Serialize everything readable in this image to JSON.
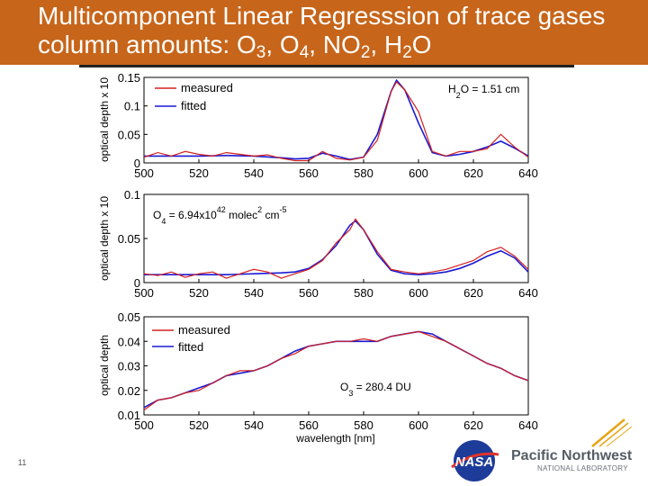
{
  "slide": {
    "title_parts": [
      "Multicomponent Linear Regresssion of trace gases column amounts: O",
      "3",
      ", O",
      "4",
      ", NO",
      "2",
      ", H",
      "2",
      "O"
    ],
    "slide_number": "11",
    "logo_nasa": "NASA",
    "logo_pnnl_name": "Pacific Northwest",
    "logo_pnnl_lab": "NATIONAL LABORATORY",
    "title_bg_color": "#c7651a",
    "measured_color": "#d42020",
    "fitted_color": "#1a1ad4"
  },
  "chart_data": [
    {
      "type": "line",
      "panel": "H2O",
      "ylabel": "optical depth x 10",
      "xlabel": "",
      "xlim": [
        500,
        640
      ],
      "ylim": [
        0,
        0.15
      ],
      "xticks": [
        500,
        520,
        540,
        560,
        580,
        600,
        620,
        640
      ],
      "yticks": [
        "0",
        "0.05",
        "0.1",
        "0.15"
      ],
      "legend": [
        "measured",
        "fitted"
      ],
      "legend_position": "top-left",
      "annotation": {
        "pre": "H",
        "sub": "2",
        "post": "O = 1.51 cm"
      },
      "series": [
        {
          "name": "measured",
          "x": [
            500,
            505,
            510,
            515,
            520,
            525,
            530,
            535,
            540,
            545,
            550,
            555,
            560,
            565,
            570,
            575,
            580,
            585,
            590,
            592,
            595,
            600,
            605,
            610,
            615,
            620,
            625,
            630,
            635,
            640
          ],
          "y": [
            0.01,
            0.018,
            0.012,
            0.02,
            0.015,
            0.012,
            0.018,
            0.015,
            0.012,
            0.014,
            0.008,
            0.004,
            0.004,
            0.02,
            0.008,
            0.005,
            0.01,
            0.04,
            0.125,
            0.142,
            0.128,
            0.09,
            0.02,
            0.012,
            0.02,
            0.02,
            0.025,
            0.05,
            0.028,
            0.01
          ]
        },
        {
          "name": "fitted",
          "x": [
            500,
            510,
            520,
            530,
            540,
            550,
            555,
            560,
            565,
            570,
            575,
            580,
            585,
            590,
            592,
            595,
            600,
            605,
            610,
            615,
            620,
            625,
            630,
            635,
            640
          ],
          "y": [
            0.012,
            0.012,
            0.012,
            0.013,
            0.012,
            0.009,
            0.007,
            0.008,
            0.017,
            0.012,
            0.006,
            0.01,
            0.05,
            0.125,
            0.145,
            0.128,
            0.07,
            0.018,
            0.012,
            0.015,
            0.02,
            0.028,
            0.038,
            0.026,
            0.012
          ]
        }
      ]
    },
    {
      "type": "line",
      "panel": "O4",
      "ylabel": "optical depth x 10",
      "xlabel": "",
      "xlim": [
        500,
        640
      ],
      "ylim": [
        0,
        0.1
      ],
      "xticks": [
        500,
        520,
        540,
        560,
        580,
        600,
        620,
        640
      ],
      "yticks": [
        "0",
        "0.05",
        "0.1"
      ],
      "legend": [],
      "annotation": {
        "pre": "O",
        "sub": "4",
        "post": " = 6.94x10",
        "sup1": "42",
        "post2": " molec",
        "sup2": "2",
        "post3": " cm",
        "sup3": "-5"
      },
      "series": [
        {
          "name": "measured",
          "x": [
            500,
            505,
            510,
            515,
            520,
            525,
            530,
            535,
            540,
            545,
            550,
            555,
            560,
            565,
            570,
            575,
            577,
            580,
            585,
            590,
            595,
            600,
            605,
            610,
            615,
            620,
            625,
            630,
            635,
            640
          ],
          "y": [
            0.01,
            0.008,
            0.012,
            0.006,
            0.01,
            0.012,
            0.005,
            0.01,
            0.015,
            0.012,
            0.005,
            0.01,
            0.015,
            0.025,
            0.045,
            0.06,
            0.072,
            0.06,
            0.035,
            0.015,
            0.012,
            0.01,
            0.012,
            0.015,
            0.02,
            0.025,
            0.035,
            0.04,
            0.03,
            0.015
          ]
        },
        {
          "name": "fitted",
          "x": [
            500,
            510,
            520,
            530,
            540,
            550,
            555,
            560,
            565,
            570,
            575,
            577,
            580,
            585,
            590,
            595,
            600,
            605,
            610,
            615,
            620,
            625,
            630,
            635,
            640
          ],
          "y": [
            0.009,
            0.009,
            0.009,
            0.009,
            0.01,
            0.011,
            0.012,
            0.016,
            0.026,
            0.042,
            0.065,
            0.07,
            0.06,
            0.032,
            0.014,
            0.01,
            0.009,
            0.01,
            0.012,
            0.016,
            0.022,
            0.03,
            0.036,
            0.028,
            0.012
          ]
        }
      ]
    },
    {
      "type": "line",
      "panel": "O3",
      "ylabel": "optical depth",
      "xlabel": "wavelength [nm]",
      "xlim": [
        500,
        640
      ],
      "ylim": [
        0.01,
        0.05
      ],
      "xticks": [
        500,
        520,
        540,
        560,
        580,
        600,
        620,
        640
      ],
      "yticks": [
        "0.01",
        "0.02",
        "0.03",
        "0.04",
        "0.05"
      ],
      "legend": [
        "measured",
        "fitted"
      ],
      "legend_position": "top-left",
      "annotation": {
        "pre": "O",
        "sub": "3",
        "post": " = 280.4 DU"
      },
      "series": [
        {
          "name": "measured",
          "x": [
            500,
            505,
            510,
            515,
            520,
            525,
            530,
            535,
            540,
            545,
            550,
            555,
            560,
            565,
            570,
            575,
            580,
            585,
            590,
            595,
            600,
            605,
            610,
            615,
            620,
            625,
            630,
            635,
            640
          ],
          "y": [
            0.012,
            0.016,
            0.017,
            0.019,
            0.02,
            0.023,
            0.026,
            0.028,
            0.028,
            0.03,
            0.033,
            0.035,
            0.038,
            0.039,
            0.04,
            0.04,
            0.041,
            0.04,
            0.042,
            0.043,
            0.044,
            0.042,
            0.04,
            0.037,
            0.034,
            0.031,
            0.029,
            0.026,
            0.024
          ]
        },
        {
          "name": "fitted",
          "x": [
            500,
            505,
            510,
            515,
            520,
            525,
            530,
            535,
            540,
            545,
            550,
            555,
            560,
            565,
            570,
            575,
            580,
            585,
            590,
            595,
            600,
            605,
            610,
            615,
            620,
            625,
            630,
            635,
            640
          ],
          "y": [
            0.013,
            0.016,
            0.017,
            0.019,
            0.021,
            0.023,
            0.026,
            0.027,
            0.028,
            0.03,
            0.033,
            0.036,
            0.038,
            0.039,
            0.04,
            0.04,
            0.04,
            0.04,
            0.042,
            0.043,
            0.044,
            0.043,
            0.04,
            0.037,
            0.034,
            0.031,
            0.029,
            0.026,
            0.024
          ]
        }
      ]
    }
  ]
}
